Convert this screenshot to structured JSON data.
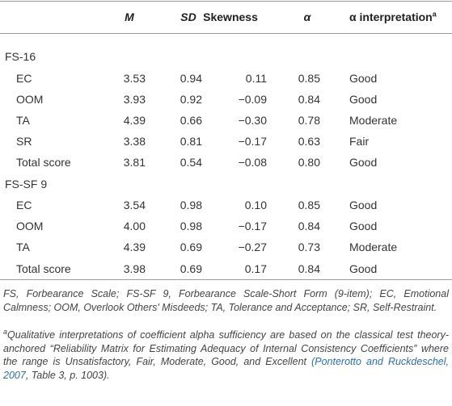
{
  "table": {
    "columns": [
      "M",
      "SD",
      "Skewness",
      "α",
      "α interpretation"
    ],
    "column_note_marker": "a",
    "groups": [
      {
        "name": "FS-16",
        "rows": [
          [
            "EC",
            "3.53",
            "0.94",
            "0.11",
            "0.85",
            "Good"
          ],
          [
            "OOM",
            "3.93",
            "0.92",
            "−0.09",
            "0.84",
            "Good"
          ],
          [
            "TA",
            "4.39",
            "0.66",
            "−0.30",
            "0.78",
            "Moderate"
          ],
          [
            "SR",
            "3.38",
            "0.81",
            "−0.17",
            "0.63",
            "Fair"
          ],
          [
            "Total score",
            "3.81",
            "0.54",
            "−0.08",
            "0.80",
            "Good"
          ]
        ]
      },
      {
        "name": "FS-SF 9",
        "rows": [
          [
            "EC",
            "3.54",
            "0.98",
            "0.10",
            "0.85",
            "Good"
          ],
          [
            "OOM",
            "4.00",
            "0.98",
            "−0.17",
            "0.84",
            "Good"
          ],
          [
            "TA",
            "4.39",
            "0.69",
            "−0.27",
            "0.73",
            "Moderate"
          ],
          [
            "Total score",
            "3.98",
            "0.69",
            "0.17",
            "0.84",
            "Good"
          ]
        ]
      }
    ]
  },
  "footnotes": [
    "FS, Forbearance Scale; FS-SF 9, Forbearance Scale-Short Form (9-item); EC, Emotional Calmness; OOM, Overlook Others' Misdeeds; TA, Tolerance and Acceptance; SR, Self-Restraint.",
    {
      "marker": "a",
      "text": "Qualitative interpretations of coefficient alpha sufficiency are based on the classical test theory-anchored “Reliability Matrix for Estimating Adequacy of Internal Consistency Coefficients” where the range is Unsatisfactory, Fair, Moderate, Good, and Excellent",
      "citation": "(Ponterotto and Ruckdeschel, 2007",
      "rest": ", Table 3, p. 1003)."
    }
  ]
}
